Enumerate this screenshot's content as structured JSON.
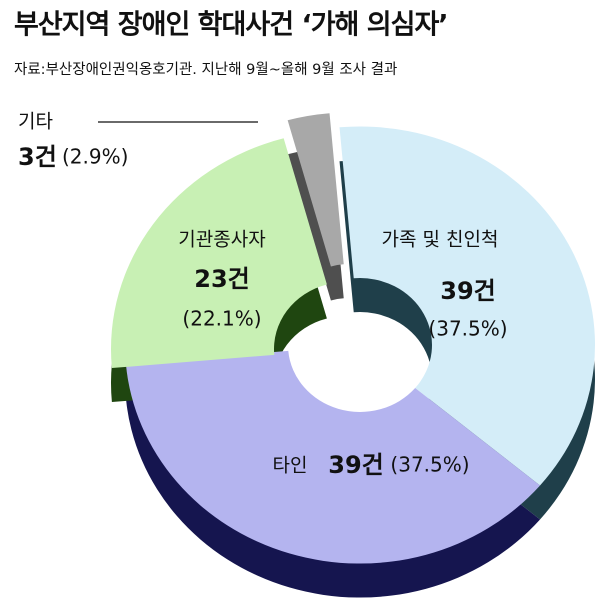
{
  "chart_data": {
    "type": "donut",
    "title": "부산지역 장애인 학대사건 ‘가해 의심자’",
    "subtitle": "자료:부산장애인권익옹호기관.  지난해 9월~올해 9월 조사 결과",
    "categories": [
      "가족 및 친인척",
      "타인",
      "기관종사자",
      "기타"
    ],
    "values": [
      39,
      39,
      23,
      3
    ],
    "value_labels": [
      "39건",
      "39건",
      "23건",
      "3건"
    ],
    "percentages": [
      37.5,
      37.5,
      22.1,
      2.9
    ],
    "percentage_labels": [
      "(37.5%)",
      "(37.5%)",
      "(22.1%)",
      "(2.9%)"
    ],
    "colors": [
      "#d4edf8",
      "#b4b4ef",
      "#c8f0b4",
      "#a8a8a8"
    ],
    "side_colors": [
      "#1f3f4a",
      "#15154f",
      "#1f4610",
      "#4f4f4f"
    ]
  }
}
